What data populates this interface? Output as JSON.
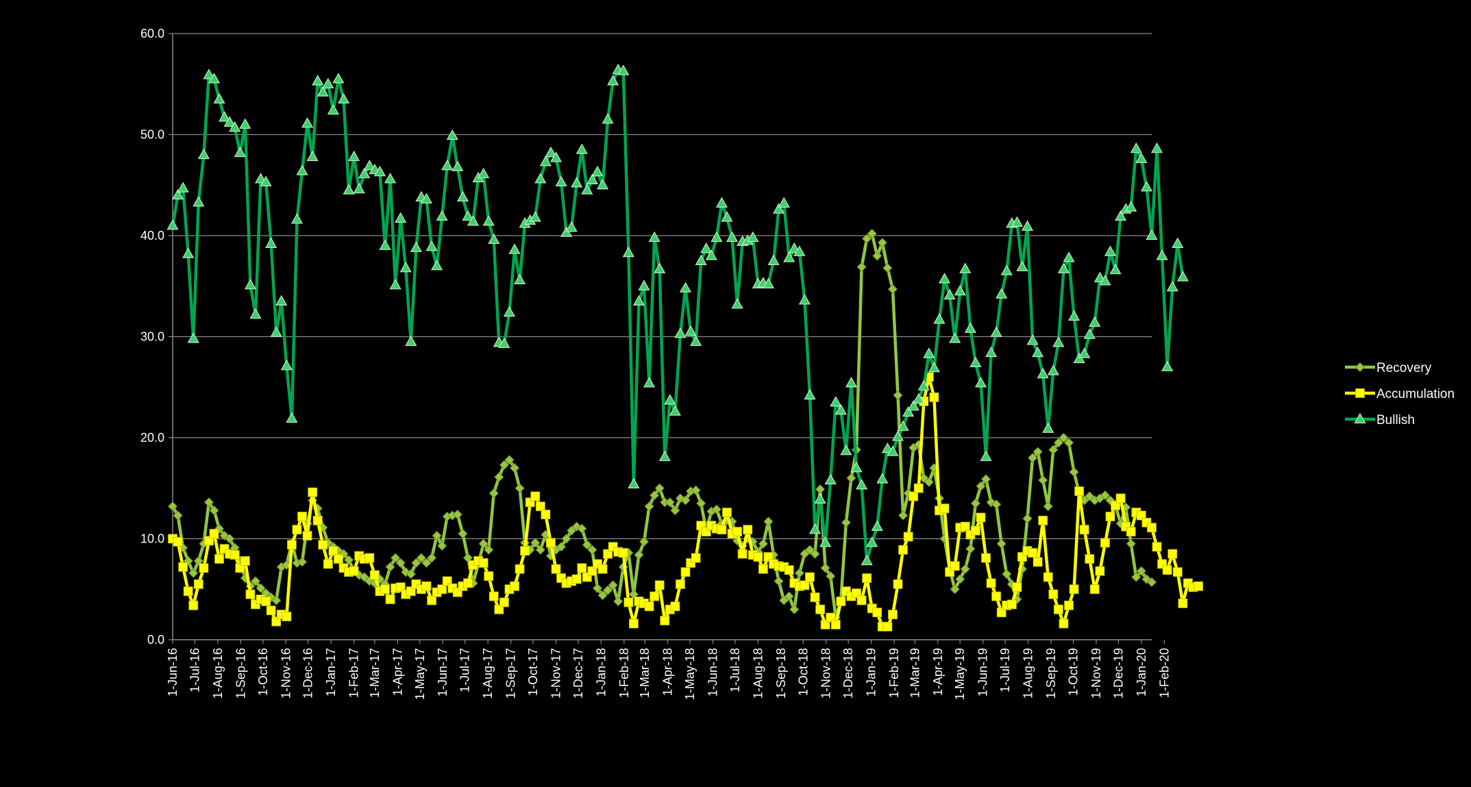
{
  "chart_data": {
    "type": "line",
    "title": "",
    "xlabel": "",
    "ylabel": "",
    "ylim": [
      0,
      60
    ],
    "y_ticks": [
      "0.0",
      "10.0",
      "20.0",
      "30.0",
      "40.0",
      "50.0",
      "60.0"
    ],
    "x_ticks": [
      "1-Jun-16",
      "1-Jul-16",
      "1-Aug-16",
      "1-Sep-16",
      "1-Oct-16",
      "1-Nov-16",
      "1-Dec-16",
      "1-Jan-17",
      "1-Feb-17",
      "1-Mar-17",
      "1-Apr-17",
      "1-May-17",
      "1-Jun-17",
      "1-Jul-17",
      "1-Aug-17",
      "1-Sep-17",
      "1-Oct-17",
      "1-Nov-17",
      "1-Dec-17",
      "1-Jan-18",
      "1-Feb-18",
      "1-Mar-18",
      "1-Apr-18",
      "1-May-18",
      "1-Jun-18",
      "1-Jul-18",
      "1-Aug-18",
      "1-Sep-18",
      "1-Oct-18",
      "1-Nov-18",
      "1-Dec-18",
      "1-Jan-19",
      "1-Feb-19",
      "1-Mar-19",
      "1-Apr-19",
      "1-May-19",
      "1-Jun-19",
      "1-Jul-19",
      "1-Aug-19",
      "1-Sep-19",
      "1-Oct-19",
      "1-Nov-19",
      "1-Dec-19",
      "1-Jan-20",
      "1-Feb-20"
    ],
    "x_start": "2016-06-01",
    "interval_days": 7,
    "gridlines": true,
    "legend_position": "right",
    "series": [
      {
        "name": "Recovery",
        "color": "#92c83e",
        "marker": "diamond",
        "values": [
          13.2,
          12.3,
          9.1,
          7.8,
          6.6,
          7.8,
          9.5,
          13.6,
          12.8,
          11.0,
          10.3,
          10.0,
          9.1,
          7.8,
          6.1,
          5.3,
          5.8,
          5.1,
          4.6,
          4.2,
          3.9,
          7.2,
          7.4,
          9.6,
          7.6,
          7.7,
          11.5,
          13.8,
          13.0,
          11.1,
          9.6,
          9.2,
          8.8,
          8.5,
          7.9,
          6.8,
          6.4,
          6.2,
          5.8,
          5.6,
          6.0,
          5.5,
          7.2,
          8.1,
          7.6,
          6.7,
          6.5,
          7.6,
          8.1,
          7.6,
          8.1,
          10.3,
          9.3,
          12.2,
          12.3,
          12.4,
          10.5,
          8.1,
          5.6,
          7.5,
          9.5,
          8.9,
          14.5,
          16.1,
          17.3,
          17.8,
          17.0,
          15.0,
          9.6,
          8.9,
          9.6,
          8.9,
          10.4,
          8.3,
          8.9,
          9.2,
          10.0,
          10.8,
          11.2,
          11.0,
          9.4,
          8.9,
          5.1,
          4.4,
          4.9,
          5.4,
          3.8,
          7.2,
          8.6,
          4.5,
          8.4,
          9.7,
          13.2,
          14.3,
          15.0,
          13.6,
          13.6,
          12.8,
          14.0,
          13.8,
          14.7,
          14.8,
          13.5,
          10.8,
          12.7,
          12.9,
          11.5,
          11.8,
          11.7,
          9.8,
          9.3,
          10.0,
          9.7,
          8.7,
          9.5,
          11.7,
          8.4,
          5.8,
          3.9,
          4.3,
          3.0,
          6.6,
          8.5,
          8.9,
          8.5,
          14.9,
          7.1,
          6.3,
          2.2,
          3.9,
          11.6,
          16.0,
          18.8,
          36.9,
          39.7,
          40.2,
          38.0,
          39.3,
          36.8,
          34.7,
          24.2,
          12.3,
          14.5,
          19.0,
          19.3,
          16.0,
          15.6,
          17.0,
          14.0,
          10.0,
          7.0,
          5.0,
          6.0,
          7.0,
          9.0,
          13.5,
          15.2,
          15.9,
          13.6,
          13.4,
          9.5,
          6.5,
          5.5,
          4.0,
          7.0,
          12.0,
          18.0,
          18.6,
          15.8,
          13.2,
          18.8,
          19.5,
          20.0,
          19.5,
          16.6,
          14.5,
          13.8,
          14.2,
          13.8,
          14.0,
          14.3,
          13.8,
          13.3,
          11.5,
          13.1,
          9.5,
          6.2,
          6.8,
          6.0,
          5.7
        ]
      },
      {
        "name": "Accumulation",
        "color": "#ffff00",
        "marker": "square",
        "values": [
          10.0,
          9.7,
          7.2,
          4.8,
          3.4,
          5.5,
          7.1,
          9.8,
          10.5,
          8.0,
          9.0,
          8.5,
          8.4,
          7.1,
          7.8,
          4.5,
          3.5,
          4.0,
          3.8,
          2.9,
          1.8,
          2.5,
          2.3,
          9.4,
          10.9,
          12.2,
          10.3,
          14.6,
          11.8,
          9.4,
          7.5,
          8.8,
          8.0,
          7.1,
          6.7,
          6.8,
          8.3,
          8.0,
          8.1,
          6.4,
          4.8,
          5.0,
          4.0,
          5.1,
          5.2,
          4.5,
          4.8,
          5.5,
          5.0,
          5.3,
          3.9,
          4.7,
          5.0,
          5.8,
          5.1,
          4.7,
          5.3,
          5.6,
          7.4,
          7.8,
          7.6,
          6.3,
          4.3,
          3.0,
          3.7,
          5.0,
          5.3,
          7.0,
          8.8,
          13.6,
          14.2,
          13.2,
          12.4,
          9.6,
          7.0,
          6.1,
          5.6,
          5.8,
          6.0,
          7.1,
          6.2,
          6.8,
          7.5,
          7.0,
          8.5,
          9.2,
          8.7,
          8.6,
          3.7,
          1.6,
          3.8,
          3.6,
          3.3,
          4.3,
          5.4,
          1.9,
          3.0,
          3.3,
          5.5,
          6.7,
          7.6,
          8.1,
          11.3,
          10.7,
          11.3,
          11.0,
          10.9,
          12.6,
          10.5,
          10.7,
          8.5,
          10.9,
          8.4,
          8.2,
          7.0,
          8.2,
          7.5,
          7.3,
          7.2,
          6.9,
          5.6,
          5.3,
          5.4,
          6.2,
          4.2,
          3.0,
          1.5,
          2.2,
          1.5,
          3.8,
          4.8,
          4.3,
          4.6,
          3.9,
          6.1,
          3.1,
          2.7,
          1.3,
          1.3,
          2.5,
          5.5,
          8.9,
          10.2,
          14.2,
          15.0,
          23.6,
          26.0,
          24.0,
          12.8,
          13.0,
          6.7,
          7.3,
          11.1,
          11.2,
          10.4,
          10.8,
          12.1,
          8.1,
          5.6,
          4.3,
          2.7,
          3.4,
          3.5,
          5.2,
          8.2,
          8.8,
          8.6,
          7.7,
          11.8,
          6.2,
          4.5,
          3.0,
          1.6,
          3.4,
          5.0,
          14.7,
          10.9,
          8.0,
          5.0,
          6.8,
          9.6,
          12.2,
          13.3,
          14.0,
          11.2,
          10.7,
          12.6,
          12.3,
          11.6,
          11.1,
          9.2,
          7.5,
          6.9,
          8.5,
          6.7,
          3.6,
          5.6,
          5.2,
          5.3
        ]
      },
      {
        "name": "Bullish",
        "color": "#00a550",
        "marker": "triangle",
        "values": [
          41.0,
          44.0,
          44.7,
          38.2,
          29.8,
          43.3,
          48.0,
          55.9,
          55.5,
          53.5,
          51.7,
          51.2,
          50.7,
          48.2,
          51.0,
          35.1,
          32.2,
          45.6,
          45.3,
          39.2,
          30.4,
          33.5,
          27.1,
          21.9,
          41.6,
          46.4,
          51.1,
          47.8,
          55.3,
          54.2,
          55.0,
          52.4,
          55.5,
          53.5,
          44.5,
          47.8,
          44.6,
          46.1,
          46.9,
          46.5,
          46.3,
          39.0,
          45.6,
          35.1,
          41.7,
          36.8,
          29.5,
          38.8,
          43.8,
          43.6,
          38.9,
          37.0,
          41.9,
          46.9,
          49.9,
          46.8,
          43.8,
          41.9,
          41.4,
          45.7,
          46.1,
          41.4,
          39.6,
          29.4,
          29.3,
          32.4,
          38.6,
          35.6,
          41.2,
          41.5,
          41.8,
          45.6,
          47.3,
          48.2,
          47.7,
          45.3,
          40.3,
          40.8,
          45.2,
          48.5,
          44.5,
          45.5,
          46.3,
          45.0,
          51.5,
          55.3,
          56.4,
          56.3,
          38.3,
          15.4,
          33.5,
          35.0,
          25.4,
          39.8,
          36.7,
          18.1,
          23.7,
          22.6,
          30.3,
          34.8,
          30.5,
          29.5,
          37.5,
          38.7,
          38.0,
          39.8,
          43.2,
          41.8,
          39.8,
          33.2,
          39.4,
          39.5,
          39.8,
          35.2,
          35.3,
          35.2,
          37.5,
          42.6,
          43.2,
          37.8,
          38.7,
          38.4,
          33.6,
          24.2,
          10.9,
          13.9,
          9.6,
          15.8,
          23.5,
          22.7,
          18.7,
          25.4,
          17.0,
          15.3,
          7.8,
          9.6,
          11.2,
          15.9,
          18.9,
          18.6,
          20.1,
          21.1,
          22.5,
          23.1,
          23.8,
          25.1,
          28.3,
          26.9,
          31.7,
          35.7,
          34.1,
          29.8,
          34.5,
          36.7,
          30.8,
          27.4,
          25.4,
          18.1,
          28.4,
          30.4,
          34.2,
          36.5,
          41.2,
          41.3,
          36.9,
          40.9,
          29.6,
          28.4,
          26.3,
          20.9,
          26.6,
          29.4,
          36.7,
          37.8,
          32.0,
          27.8,
          28.3,
          30.2,
          31.4,
          35.8,
          35.5,
          38.4,
          36.6,
          41.9,
          42.6,
          42.8,
          48.6,
          47.6,
          44.8,
          40.0,
          48.6,
          38.0,
          27.0,
          34.9,
          39.2,
          35.9
        ]
      }
    ]
  }
}
